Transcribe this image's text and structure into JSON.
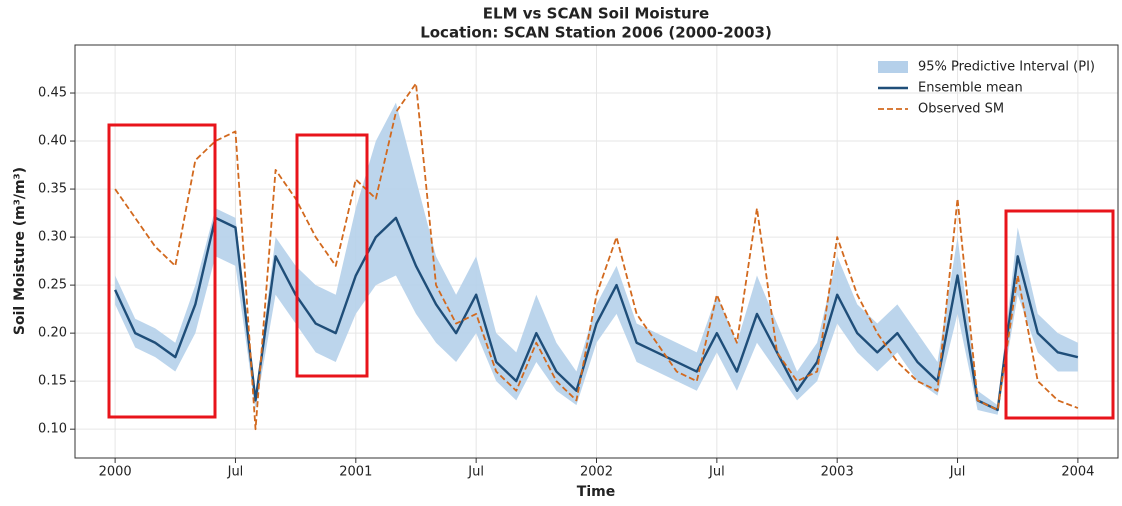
{
  "chart_data": {
    "type": "line",
    "title": "ELM vs SCAN Soil Moisture",
    "subtitle": "Location: SCAN Station 2006 (2000-2003)",
    "x_label": "Time",
    "y_label": "Soil Moisture (m³/m³)",
    "x": [
      "2000-01",
      "2000-02",
      "2000-03",
      "2000-04",
      "2000-05",
      "2000-06",
      "2000-07",
      "2000-08",
      "2000-09",
      "2000-10",
      "2000-11",
      "2000-12",
      "2001-01",
      "2001-02",
      "2001-03",
      "2001-04",
      "2001-05",
      "2001-06",
      "2001-07",
      "2001-08",
      "2001-09",
      "2001-10",
      "2001-11",
      "2001-12",
      "2002-01",
      "2002-02",
      "2002-03",
      "2002-04",
      "2002-05",
      "2002-06",
      "2002-07",
      "2002-08",
      "2002-09",
      "2002-10",
      "2002-11",
      "2002-12",
      "2003-01",
      "2003-02",
      "2003-03",
      "2003-04",
      "2003-05",
      "2003-06",
      "2003-07",
      "2003-08",
      "2003-09",
      "2003-10",
      "2003-11",
      "2003-12",
      "2004-01"
    ],
    "interval": {
      "name": "95% Predictive Interval (PI)",
      "color": "#b5d0ea",
      "lower": [
        0.23,
        0.185,
        0.175,
        0.16,
        0.2,
        0.28,
        0.27,
        0.12,
        0.24,
        0.21,
        0.18,
        0.17,
        0.22,
        0.25,
        0.26,
        0.22,
        0.19,
        0.17,
        0.2,
        0.15,
        0.13,
        0.17,
        0.14,
        0.125,
        0.19,
        0.22,
        0.17,
        0.16,
        0.15,
        0.14,
        0.18,
        0.14,
        0.19,
        0.16,
        0.13,
        0.15,
        0.21,
        0.18,
        0.16,
        0.18,
        0.15,
        0.135,
        0.22,
        0.12,
        0.115,
        0.24,
        0.18,
        0.16,
        0.16
      ],
      "upper": [
        0.26,
        0.215,
        0.205,
        0.19,
        0.25,
        0.33,
        0.32,
        0.135,
        0.3,
        0.27,
        0.25,
        0.24,
        0.33,
        0.4,
        0.44,
        0.36,
        0.28,
        0.24,
        0.28,
        0.2,
        0.18,
        0.24,
        0.19,
        0.16,
        0.23,
        0.27,
        0.21,
        0.2,
        0.19,
        0.18,
        0.24,
        0.19,
        0.26,
        0.21,
        0.16,
        0.19,
        0.28,
        0.23,
        0.21,
        0.23,
        0.2,
        0.17,
        0.3,
        0.14,
        0.125,
        0.31,
        0.22,
        0.2,
        0.19
      ]
    },
    "series": [
      {
        "name": "Ensemble mean",
        "color": "#1f4e79",
        "dash": false,
        "values": [
          0.245,
          0.2,
          0.19,
          0.175,
          0.23,
          0.32,
          0.31,
          0.13,
          0.28,
          0.24,
          0.21,
          0.2,
          0.26,
          0.3,
          0.32,
          0.27,
          0.23,
          0.2,
          0.24,
          0.17,
          0.15,
          0.2,
          0.16,
          0.14,
          0.21,
          0.25,
          0.19,
          0.18,
          0.17,
          0.16,
          0.2,
          0.16,
          0.22,
          0.18,
          0.14,
          0.17,
          0.24,
          0.2,
          0.18,
          0.2,
          0.17,
          0.15,
          0.26,
          0.13,
          0.12,
          0.28,
          0.2,
          0.18,
          0.175
        ]
      },
      {
        "name": "Observed SM",
        "color": "#d2691e",
        "dash": true,
        "values": [
          0.35,
          0.32,
          0.29,
          0.27,
          0.38,
          0.4,
          0.41,
          0.1,
          0.37,
          0.34,
          0.3,
          0.27,
          0.36,
          0.34,
          0.43,
          0.46,
          0.25,
          0.21,
          0.22,
          0.16,
          0.14,
          0.19,
          0.15,
          0.13,
          0.24,
          0.3,
          0.22,
          0.19,
          0.16,
          0.15,
          0.24,
          0.19,
          0.33,
          0.18,
          0.15,
          0.16,
          0.3,
          0.24,
          0.2,
          0.17,
          0.15,
          0.14,
          0.34,
          0.13,
          0.12,
          0.26,
          0.15,
          0.13,
          0.122
        ]
      }
    ],
    "xlim": [
      "1999-11",
      "2004-03"
    ],
    "xticks": [
      {
        "value": "2000-01",
        "label": "2000"
      },
      {
        "value": "2000-07",
        "label": "Jul"
      },
      {
        "value": "2001-01",
        "label": "2001"
      },
      {
        "value": "2001-07",
        "label": "Jul"
      },
      {
        "value": "2002-01",
        "label": "2002"
      },
      {
        "value": "2002-07",
        "label": "Jul"
      },
      {
        "value": "2003-01",
        "label": "2003"
      },
      {
        "value": "2003-07",
        "label": "Jul"
      },
      {
        "value": "2004-01",
        "label": "2004"
      }
    ],
    "ylim": [
      0.07,
      0.5
    ],
    "yticks": [
      {
        "value": 0.1,
        "label": "0.10"
      },
      {
        "value": 0.15,
        "label": "0.15"
      },
      {
        "value": 0.2,
        "label": "0.20"
      },
      {
        "value": 0.25,
        "label": "0.25"
      },
      {
        "value": 0.3,
        "label": "0.30"
      },
      {
        "value": 0.35,
        "label": "0.35"
      },
      {
        "value": 0.4,
        "label": "0.40"
      },
      {
        "value": 0.45,
        "label": "0.45"
      }
    ],
    "grid": true,
    "legend": "upper right"
  }
}
